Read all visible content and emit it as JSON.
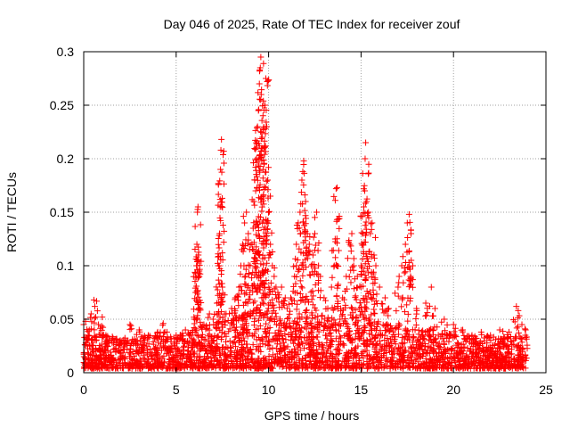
{
  "chart_data": {
    "type": "scatter",
    "title": "Day 046 of 2025, Rate Of TEC Index for receiver zouf",
    "xlabel": "GPS time / hours",
    "ylabel": "ROTI / TECUs",
    "xlim": [
      0,
      25
    ],
    "ylim": [
      0,
      0.3
    ],
    "xticks": [
      0,
      5,
      10,
      15,
      20,
      25
    ],
    "yticks": [
      0,
      0.05,
      0.1,
      0.15,
      0.2,
      0.25,
      0.3
    ],
    "xtick_labels": [
      "0",
      "5",
      "10",
      "15",
      "20",
      "25"
    ],
    "ytick_labels": [
      "0",
      "0.05",
      "0.1",
      "0.15",
      "0.2",
      "0.25",
      "0.3"
    ],
    "grid": true,
    "marker": "+",
    "color": "#ff0000",
    "series": [
      {
        "name": "ROTI",
        "points": [
          [
            0.0,
            0.045
          ],
          [
            0.1,
            0.048
          ],
          [
            0.3,
            0.04
          ],
          [
            0.4,
            0.055
          ],
          [
            0.55,
            0.068
          ],
          [
            0.6,
            0.062
          ],
          [
            0.8,
            0.045
          ],
          [
            1.0,
            0.052
          ],
          [
            1.2,
            0.035
          ],
          [
            1.5,
            0.03
          ],
          [
            2.0,
            0.028
          ],
          [
            2.5,
            0.045
          ],
          [
            3.0,
            0.04
          ],
          [
            3.5,
            0.035
          ],
          [
            4.0,
            0.038
          ],
          [
            4.3,
            0.046
          ],
          [
            4.5,
            0.038
          ],
          [
            5.0,
            0.035
          ],
          [
            5.5,
            0.04
          ],
          [
            5.8,
            0.035
          ],
          [
            6.0,
            0.05
          ],
          [
            6.05,
            0.075
          ],
          [
            6.1,
            0.1
          ],
          [
            6.12,
            0.12
          ],
          [
            6.15,
            0.15
          ],
          [
            6.18,
            0.155
          ],
          [
            6.2,
            0.11
          ],
          [
            6.25,
            0.09
          ],
          [
            6.3,
            0.06
          ],
          [
            6.5,
            0.045
          ],
          [
            6.8,
            0.055
          ],
          [
            7.0,
            0.05
          ],
          [
            7.2,
            0.065
          ],
          [
            7.3,
            0.1
          ],
          [
            7.35,
            0.13
          ],
          [
            7.38,
            0.162
          ],
          [
            7.4,
            0.19
          ],
          [
            7.42,
            0.208
          ],
          [
            7.45,
            0.218
          ],
          [
            7.5,
            0.08
          ],
          [
            7.7,
            0.055
          ],
          [
            8.0,
            0.06
          ],
          [
            8.2,
            0.07
          ],
          [
            8.4,
            0.08
          ],
          [
            8.5,
            0.1
          ],
          [
            8.6,
            0.12
          ],
          [
            8.7,
            0.14
          ],
          [
            8.8,
            0.15
          ],
          [
            8.9,
            0.13
          ],
          [
            9.0,
            0.1
          ],
          [
            9.1,
            0.12
          ],
          [
            9.2,
            0.16
          ],
          [
            9.25,
            0.18
          ],
          [
            9.3,
            0.17
          ],
          [
            9.35,
            0.2
          ],
          [
            9.4,
            0.23
          ],
          [
            9.45,
            0.245
          ],
          [
            9.5,
            0.27
          ],
          [
            9.55,
            0.285
          ],
          [
            9.58,
            0.295
          ],
          [
            9.6,
            0.26
          ],
          [
            9.65,
            0.22
          ],
          [
            9.7,
            0.19
          ],
          [
            9.75,
            0.21
          ],
          [
            9.8,
            0.25
          ],
          [
            9.85,
            0.275
          ],
          [
            9.9,
            0.23
          ],
          [
            9.95,
            0.18
          ],
          [
            10.0,
            0.15
          ],
          [
            10.1,
            0.12
          ],
          [
            10.2,
            0.1
          ],
          [
            10.3,
            0.09
          ],
          [
            10.4,
            0.08
          ],
          [
            10.5,
            0.075
          ],
          [
            10.7,
            0.08
          ],
          [
            10.9,
            0.07
          ],
          [
            11.0,
            0.06
          ],
          [
            11.2,
            0.07
          ],
          [
            11.4,
            0.09
          ],
          [
            11.5,
            0.12
          ],
          [
            11.6,
            0.14
          ],
          [
            11.7,
            0.15
          ],
          [
            11.8,
            0.18
          ],
          [
            11.85,
            0.188
          ],
          [
            11.9,
            0.198
          ],
          [
            12.0,
            0.16
          ],
          [
            12.1,
            0.13
          ],
          [
            12.2,
            0.12
          ],
          [
            12.3,
            0.1
          ],
          [
            12.4,
            0.11
          ],
          [
            12.5,
            0.13
          ],
          [
            12.6,
            0.15
          ],
          [
            12.7,
            0.1
          ],
          [
            12.8,
            0.09
          ],
          [
            13.0,
            0.07
          ],
          [
            13.2,
            0.06
          ],
          [
            13.4,
            0.08
          ],
          [
            13.55,
            0.1
          ],
          [
            13.6,
            0.125
          ],
          [
            13.65,
            0.172
          ],
          [
            13.7,
            0.173
          ],
          [
            13.9,
            0.06
          ],
          [
            14.0,
            0.07
          ],
          [
            14.2,
            0.09
          ],
          [
            14.4,
            0.12
          ],
          [
            14.5,
            0.13
          ],
          [
            14.6,
            0.1
          ],
          [
            14.8,
            0.09
          ],
          [
            15.0,
            0.1
          ],
          [
            15.1,
            0.13
          ],
          [
            15.15,
            0.155
          ],
          [
            15.2,
            0.17
          ],
          [
            15.22,
            0.2
          ],
          [
            15.25,
            0.215
          ],
          [
            15.3,
            0.16
          ],
          [
            15.4,
            0.15
          ],
          [
            15.5,
            0.13
          ],
          [
            15.6,
            0.14
          ],
          [
            15.7,
            0.11
          ],
          [
            15.8,
            0.1
          ],
          [
            16.0,
            0.08
          ],
          [
            16.3,
            0.07
          ],
          [
            16.5,
            0.06
          ],
          [
            17.0,
            0.08
          ],
          [
            17.2,
            0.1
          ],
          [
            17.4,
            0.12
          ],
          [
            17.5,
            0.14
          ],
          [
            17.6,
            0.148
          ],
          [
            17.7,
            0.13
          ],
          [
            17.8,
            0.1
          ],
          [
            18.0,
            0.06
          ],
          [
            18.5,
            0.065
          ],
          [
            18.8,
            0.08
          ],
          [
            19.0,
            0.06
          ],
          [
            19.5,
            0.05
          ],
          [
            20.0,
            0.045
          ],
          [
            20.5,
            0.04
          ],
          [
            21.0,
            0.035
          ],
          [
            21.5,
            0.038
          ],
          [
            22.0,
            0.035
          ],
          [
            22.5,
            0.04
          ],
          [
            23.0,
            0.038
          ],
          [
            23.4,
            0.062
          ],
          [
            23.5,
            0.058
          ],
          [
            23.7,
            0.045
          ],
          [
            23.9,
            0.04
          ]
        ],
        "density_envelope": [
          [
            0,
            0.03
          ],
          [
            1,
            0.032
          ],
          [
            2,
            0.028
          ],
          [
            3,
            0.03
          ],
          [
            4,
            0.032
          ],
          [
            5,
            0.03
          ],
          [
            6,
            0.038
          ],
          [
            7,
            0.04
          ],
          [
            8,
            0.045
          ],
          [
            9,
            0.055
          ],
          [
            10,
            0.05
          ],
          [
            11,
            0.042
          ],
          [
            12,
            0.045
          ],
          [
            13,
            0.04
          ],
          [
            14,
            0.045
          ],
          [
            15,
            0.05
          ],
          [
            16,
            0.042
          ],
          [
            17,
            0.04
          ],
          [
            18,
            0.038
          ],
          [
            19,
            0.035
          ],
          [
            20,
            0.032
          ],
          [
            21,
            0.03
          ],
          [
            22,
            0.03
          ],
          [
            23,
            0.03
          ],
          [
            24,
            0.03
          ]
        ]
      }
    ]
  }
}
